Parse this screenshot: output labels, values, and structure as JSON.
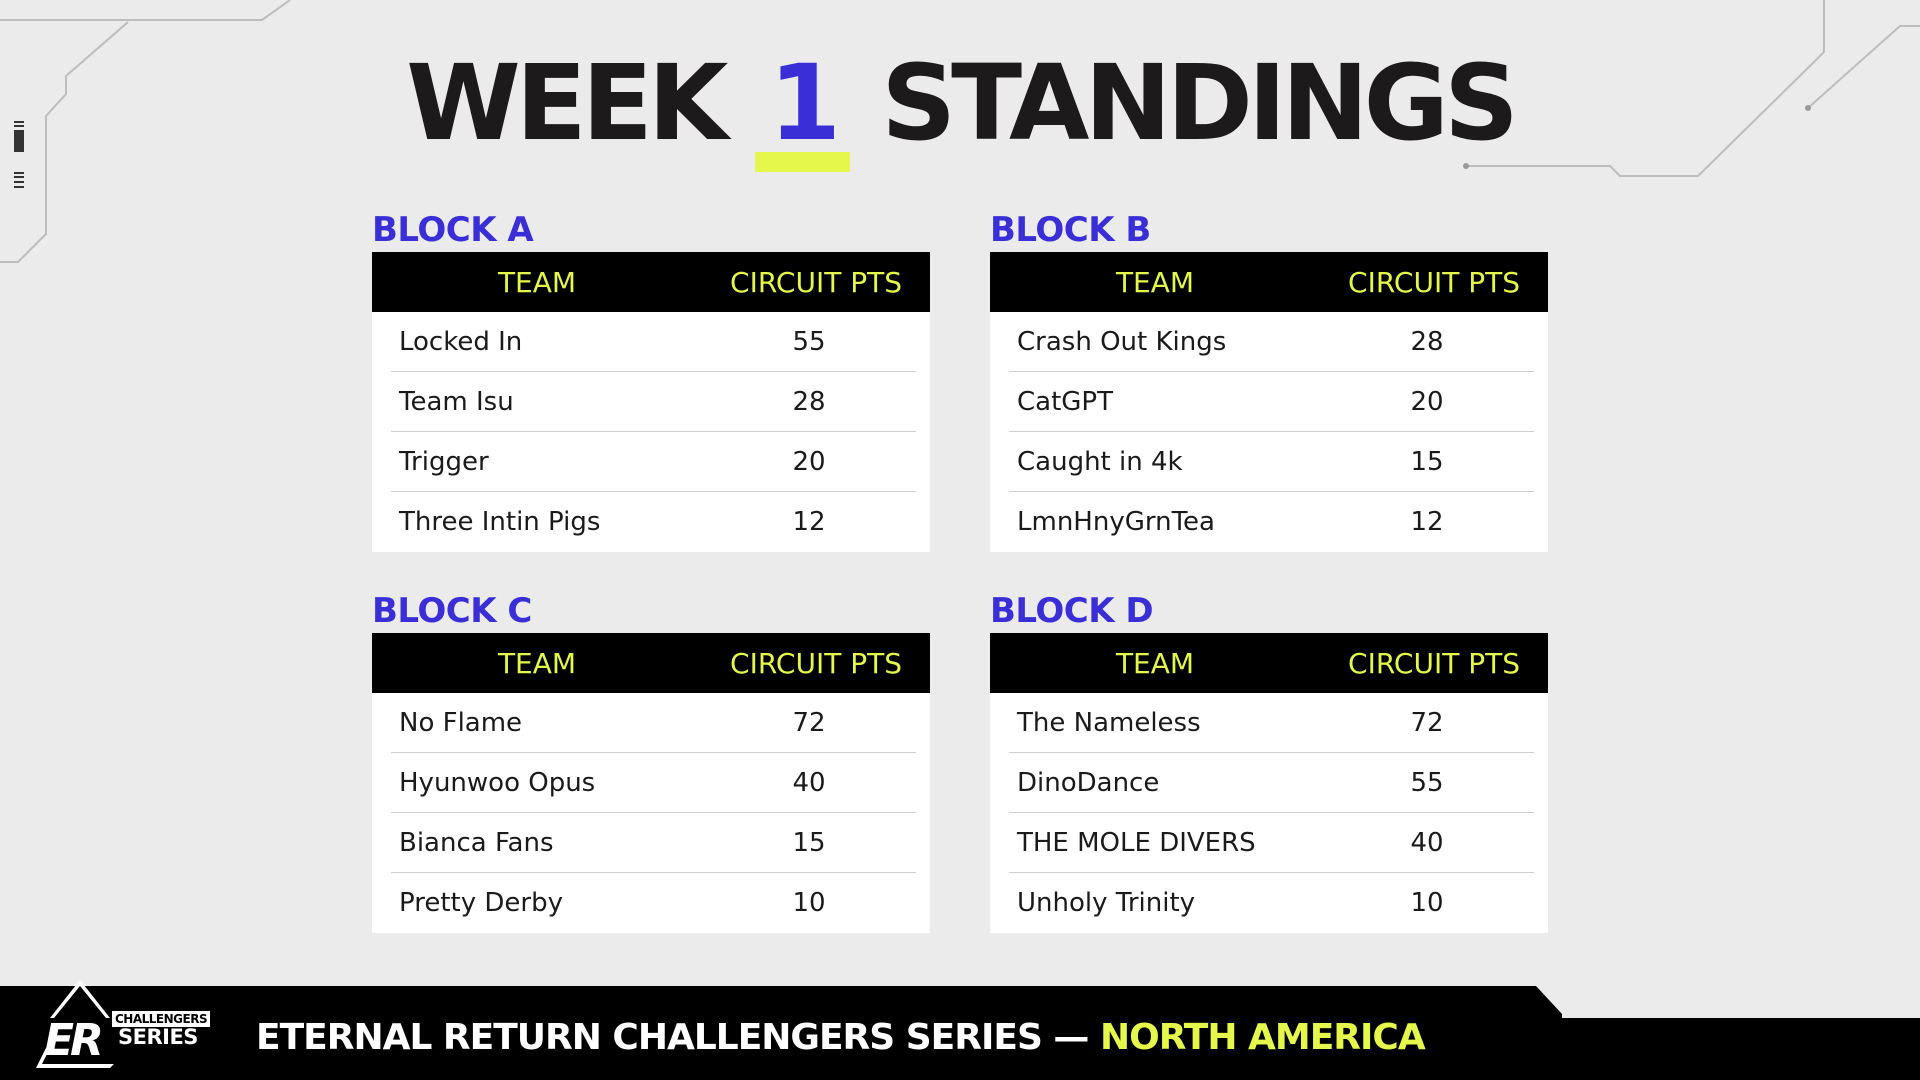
{
  "header": {
    "title_before": "WEEK ",
    "title_number": "1",
    "title_after": " STANDINGS"
  },
  "columns": {
    "team": "TEAM",
    "points": "CIRCUIT PTS"
  },
  "blocks": [
    {
      "title": "BLOCK A",
      "rows": [
        {
          "team": "Locked In",
          "points": "55"
        },
        {
          "team": "Team Isu",
          "points": "28"
        },
        {
          "team": "Trigger",
          "points": "20"
        },
        {
          "team": "Three Intin Pigs",
          "points": "12"
        }
      ]
    },
    {
      "title": "BLOCK B",
      "rows": [
        {
          "team": "Crash Out Kings",
          "points": "28"
        },
        {
          "team": "CatGPT",
          "points": "20"
        },
        {
          "team": "Caught in 4k",
          "points": "15"
        },
        {
          "team": "LmnHnyGrnTea",
          "points": "12"
        }
      ]
    },
    {
      "title": "BLOCK C",
      "rows": [
        {
          "team": "No Flame",
          "points": "72"
        },
        {
          "team": "Hyunwoo Opus",
          "points": "40"
        },
        {
          "team": "Bianca Fans",
          "points": "15"
        },
        {
          "team": "Pretty Derby",
          "points": "10"
        }
      ]
    },
    {
      "title": "BLOCK D",
      "rows": [
        {
          "team": "The Nameless",
          "points": "72"
        },
        {
          "team": "DinoDance",
          "points": "55"
        },
        {
          "team": "THE MOLE DIVERS",
          "points": "40"
        },
        {
          "team": "Unholy Trinity",
          "points": "10"
        }
      ]
    }
  ],
  "footer": {
    "series_name": "ETERNAL RETURN CHALLENGERS SERIES — ",
    "region": "NORTH AMERICA",
    "logo_mark": "ER",
    "logo_top": "CHALLENGERS",
    "logo_bottom": "SERIES"
  },
  "colors": {
    "accent_blue": "#3a2fd6",
    "accent_yellow": "#e4f74a",
    "dark": "#000000",
    "background": "#ebebeb"
  }
}
